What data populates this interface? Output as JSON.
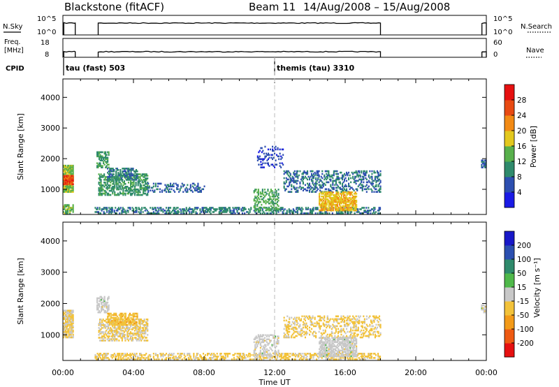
{
  "header": {
    "title": "Blackstone (fitACF)",
    "beam": "Beam 11",
    "date_range": "14/Aug/2008 – 15/Aug/2008"
  },
  "panels": {
    "nsky": {
      "label": "N.Sky",
      "ticks_left": [
        "10^5",
        "10^0"
      ],
      "ticks_right": [
        "10^5",
        "10^0"
      ],
      "right_label": "N.Search"
    },
    "freq": {
      "label_line1": "Freq.",
      "label_line2": "[MHz]",
      "ticks_left": [
        "18",
        "8"
      ],
      "ticks_right": [
        "60",
        "0"
      ],
      "right_label": "Nave"
    },
    "cpid": {
      "label": "CPID",
      "segments": [
        {
          "name": "tau (fast) 503",
          "start_hr": 0
        },
        {
          "name": "themis (tau) 3310",
          "start_hr": 12
        }
      ]
    }
  },
  "colors": {
    "power": [
      "#1a1ae6",
      "#2d4fb0",
      "#2f8a6c",
      "#58b04c",
      "#e3c81e",
      "#f28a14",
      "#e84a12",
      "#e61010"
    ],
    "velocity": [
      "#e61010",
      "#ee5a12",
      "#f39a18",
      "#f2c23a",
      "#c8c8c8",
      "#4fb84a",
      "#2f8a6c",
      "#2b4fb0",
      "#1818c8"
    ]
  },
  "chart_data": [
    {
      "type": "heatmap",
      "quantity": "power",
      "ylabel": "Slant Range [km]",
      "ylim": [
        180,
        4600
      ],
      "yticks": [
        1000,
        2000,
        3000,
        4000
      ],
      "xlim": [
        0,
        24
      ],
      "colorbar": {
        "label": "Power [dB]",
        "ticks": [
          "4",
          "8",
          "12",
          "16",
          "20",
          "24",
          "28"
        ],
        "range": [
          0,
          32
        ]
      },
      "regions": [
        {
          "t0": 0.0,
          "t1": 0.55,
          "r0": 900,
          "r1": 1800,
          "v": 15,
          "density": 0.9
        },
        {
          "t0": 0.0,
          "t1": 0.55,
          "r0": 1150,
          "r1": 1450,
          "v": 26,
          "density": 0.9
        },
        {
          "t0": 0.0,
          "t1": 0.6,
          "r0": 200,
          "r1": 500,
          "v": 14,
          "density": 0.6
        },
        {
          "t0": 1.9,
          "t1": 2.6,
          "r0": 1700,
          "r1": 2200,
          "v": 11,
          "density": 0.6
        },
        {
          "t0": 2.0,
          "t1": 4.8,
          "r0": 800,
          "r1": 1500,
          "v": 11,
          "density": 0.55
        },
        {
          "t0": 2.5,
          "t1": 4.2,
          "r0": 1300,
          "r1": 1700,
          "v": 9,
          "density": 0.55
        },
        {
          "t0": 4.8,
          "t1": 8.0,
          "r0": 900,
          "r1": 1200,
          "v": 7,
          "density": 0.3
        },
        {
          "t0": 1.8,
          "t1": 18.0,
          "r0": 200,
          "r1": 420,
          "v": 9,
          "density": 0.45
        },
        {
          "t0": 10.8,
          "t1": 12.2,
          "r0": 300,
          "r1": 1000,
          "v": 13,
          "density": 0.4
        },
        {
          "t0": 11.0,
          "t1": 12.5,
          "r0": 1700,
          "r1": 2400,
          "v": 5,
          "density": 0.22
        },
        {
          "t0": 12.5,
          "t1": 18.0,
          "r0": 900,
          "r1": 1600,
          "v": 8,
          "density": 0.35
        },
        {
          "t0": 14.5,
          "t1": 16.6,
          "r0": 300,
          "r1": 900,
          "v": 19,
          "density": 0.7
        },
        {
          "t0": 23.7,
          "t1": 23.95,
          "r0": 1700,
          "r1": 1950,
          "v": 8,
          "density": 0.7
        }
      ]
    },
    {
      "type": "heatmap",
      "quantity": "velocity",
      "ylabel": "Slant Range [km]",
      "ylim": [
        180,
        4600
      ],
      "yticks": [
        1000,
        2000,
        3000,
        4000
      ],
      "xlim": [
        0,
        24
      ],
      "xticks": [
        "00:00",
        "04:00",
        "08:00",
        "12:00",
        "16:00",
        "20:00",
        "00:00"
      ],
      "xlabel": "Time UT",
      "colorbar": {
        "label": "Velocity [m s⁻¹]",
        "ticks": [
          "-200",
          "-100",
          "-50",
          "-15",
          "15",
          "50",
          "100",
          "200"
        ],
        "range": [
          -250,
          250
        ]
      },
      "regions": [
        {
          "t0": 0.0,
          "t1": 0.55,
          "r0": 900,
          "r1": 1800,
          "v": -30,
          "density": 0.9
        },
        {
          "t0": 1.9,
          "t1": 2.6,
          "r0": 1700,
          "r1": 2200,
          "v": 0,
          "density": 0.6
        },
        {
          "t0": 2.0,
          "t1": 4.8,
          "r0": 800,
          "r1": 1500,
          "v": -35,
          "density": 0.55
        },
        {
          "t0": 2.5,
          "t1": 4.2,
          "r0": 1300,
          "r1": 1700,
          "v": -60,
          "density": 0.55
        },
        {
          "t0": 1.8,
          "t1": 18.0,
          "r0": 200,
          "r1": 420,
          "v": -45,
          "density": 0.45
        },
        {
          "t0": 10.8,
          "t1": 12.2,
          "r0": 300,
          "r1": 1000,
          "v": 0,
          "density": 0.4
        },
        {
          "t0": 12.5,
          "t1": 18.0,
          "r0": 900,
          "r1": 1600,
          "v": -40,
          "density": 0.35
        },
        {
          "t0": 14.5,
          "t1": 16.6,
          "r0": 300,
          "r1": 900,
          "v": 0,
          "density": 0.7
        },
        {
          "t0": 23.7,
          "t1": 23.95,
          "r0": 1700,
          "r1": 1950,
          "v": 0,
          "density": 0.7
        }
      ]
    }
  ]
}
